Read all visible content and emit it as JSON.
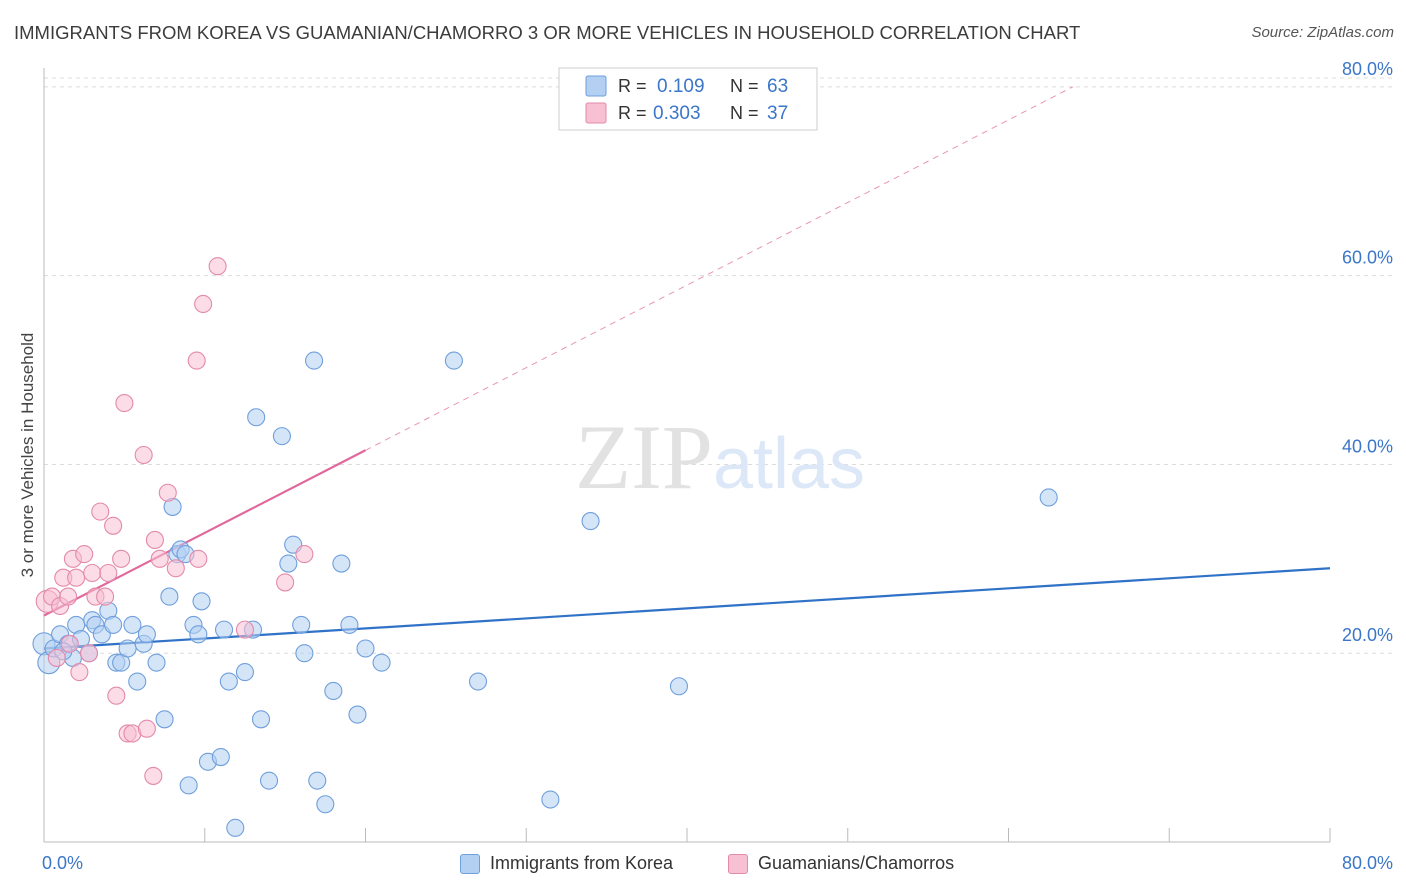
{
  "chart_data": {
    "type": "scatter",
    "title": "IMMIGRANTS FROM KOREA VS GUAMANIAN/CHAMORRO 3 OR MORE VEHICLES IN HOUSEHOLD CORRELATION CHART",
    "source": "Source: ZipAtlas.com",
    "ylabel": "3 or more Vehicles in Household",
    "xlabel": "",
    "xlim": [
      0,
      80
    ],
    "ylim": [
      0,
      82
    ],
    "x_tick_labels": [
      "0.0%",
      "80.0%"
    ],
    "y_ticks": [
      {
        "value": 20,
        "label": "20.0%"
      },
      {
        "value": 40,
        "label": "40.0%"
      },
      {
        "value": 60,
        "label": "60.0%"
      },
      {
        "value": 80,
        "label": "80.0%"
      }
    ],
    "grid": true,
    "watermark": "ZIPatlas",
    "legend": {
      "rows": [
        {
          "r_label": "R =",
          "r_value": "0.109",
          "n_label": "N =",
          "n_value": "63"
        },
        {
          "r_label": "R =",
          "r_value": "0.303",
          "n_label": "N =",
          "n_value": "37"
        }
      ]
    },
    "colors": {
      "korea_fill": "#b3cff2",
      "korea_stroke": "#6f9fdc",
      "korea_line": "#2f72c8",
      "guam_fill": "#f7c0d3",
      "guam_stroke": "#e38aaa",
      "guam_line": "#e0689a",
      "value_text": "#3b76c8",
      "grid": "#dcdcdc",
      "axis": "#bbbbbb"
    },
    "series": [
      {
        "name": "Immigrants from Korea",
        "trend": {
          "x0": 0,
          "y0": 20.5,
          "x1": 80,
          "y1": 29.0
        },
        "points": [
          [
            0.0,
            21.0
          ],
          [
            0.3,
            19.0
          ],
          [
            0.6,
            20.5
          ],
          [
            1.0,
            22.0
          ],
          [
            1.5,
            21.0
          ],
          [
            1.8,
            19.5
          ],
          [
            2.0,
            23.0
          ],
          [
            2.3,
            21.5
          ],
          [
            2.8,
            20.0
          ],
          [
            3.0,
            23.5
          ],
          [
            3.2,
            23.0
          ],
          [
            3.6,
            22.0
          ],
          [
            4.0,
            24.5
          ],
          [
            4.3,
            23.0
          ],
          [
            4.5,
            19.0
          ],
          [
            4.8,
            19.0
          ],
          [
            5.2,
            20.5
          ],
          [
            5.5,
            23.0
          ],
          [
            5.8,
            17.0
          ],
          [
            6.2,
            21.0
          ],
          [
            6.4,
            22.0
          ],
          [
            7.0,
            19.0
          ],
          [
            7.5,
            13.0
          ],
          [
            7.8,
            26.0
          ],
          [
            8.0,
            35.5
          ],
          [
            8.3,
            30.5
          ],
          [
            8.5,
            31.0
          ],
          [
            8.8,
            30.5
          ],
          [
            9.0,
            6.0
          ],
          [
            9.3,
            23.0
          ],
          [
            9.6,
            22.0
          ],
          [
            9.8,
            25.5
          ],
          [
            10.2,
            8.5
          ],
          [
            11.0,
            9.0
          ],
          [
            11.2,
            22.5
          ],
          [
            11.5,
            17.0
          ],
          [
            11.9,
            1.5
          ],
          [
            12.5,
            18.0
          ],
          [
            13.0,
            22.5
          ],
          [
            13.2,
            45.0
          ],
          [
            13.5,
            13.0
          ],
          [
            14.0,
            6.5
          ],
          [
            14.8,
            43.0
          ],
          [
            15.2,
            29.5
          ],
          [
            15.5,
            31.5
          ],
          [
            16.0,
            23.0
          ],
          [
            16.2,
            20.0
          ],
          [
            16.8,
            51.0
          ],
          [
            17.0,
            6.5
          ],
          [
            17.5,
            4.0
          ],
          [
            18.0,
            16.0
          ],
          [
            18.5,
            29.5
          ],
          [
            19.0,
            23.0
          ],
          [
            19.5,
            13.5
          ],
          [
            20.0,
            20.5
          ],
          [
            21.0,
            19.0
          ],
          [
            25.5,
            51.0
          ],
          [
            27.0,
            17.0
          ],
          [
            31.5,
            4.5
          ],
          [
            34.0,
            34.0
          ],
          [
            39.5,
            16.5
          ],
          [
            62.5,
            36.5
          ],
          [
            1.2,
            20.2
          ]
        ]
      },
      {
        "name": "Guamanians/Chamorros",
        "trend": {
          "x0": 0,
          "y0": 24.0,
          "x1": 20,
          "y1": 41.5,
          "dash_to_x": 64,
          "dash_to_y": 80
        },
        "points": [
          [
            0.2,
            25.5
          ],
          [
            0.5,
            26.0
          ],
          [
            0.8,
            19.5
          ],
          [
            1.0,
            25.0
          ],
          [
            1.2,
            28.0
          ],
          [
            1.5,
            26.0
          ],
          [
            1.8,
            30.0
          ],
          [
            2.0,
            28.0
          ],
          [
            2.2,
            18.0
          ],
          [
            2.5,
            30.5
          ],
          [
            2.8,
            20.0
          ],
          [
            3.0,
            28.5
          ],
          [
            3.2,
            26.0
          ],
          [
            3.5,
            35.0
          ],
          [
            3.8,
            26.0
          ],
          [
            4.0,
            28.5
          ],
          [
            4.3,
            33.5
          ],
          [
            4.5,
            15.5
          ],
          [
            4.8,
            30.0
          ],
          [
            5.0,
            46.5
          ],
          [
            5.2,
            11.5
          ],
          [
            5.5,
            11.5
          ],
          [
            6.2,
            41.0
          ],
          [
            6.4,
            12.0
          ],
          [
            6.8,
            7.0
          ],
          [
            6.9,
            32.0
          ],
          [
            7.2,
            30.0
          ],
          [
            7.7,
            37.0
          ],
          [
            8.2,
            29.0
          ],
          [
            9.5,
            51.0
          ],
          [
            9.6,
            30.0
          ],
          [
            9.9,
            57.0
          ],
          [
            10.8,
            61.0
          ],
          [
            12.5,
            22.5
          ],
          [
            15.0,
            27.5
          ],
          [
            16.2,
            30.5
          ],
          [
            1.6,
            21.0
          ]
        ]
      }
    ]
  }
}
